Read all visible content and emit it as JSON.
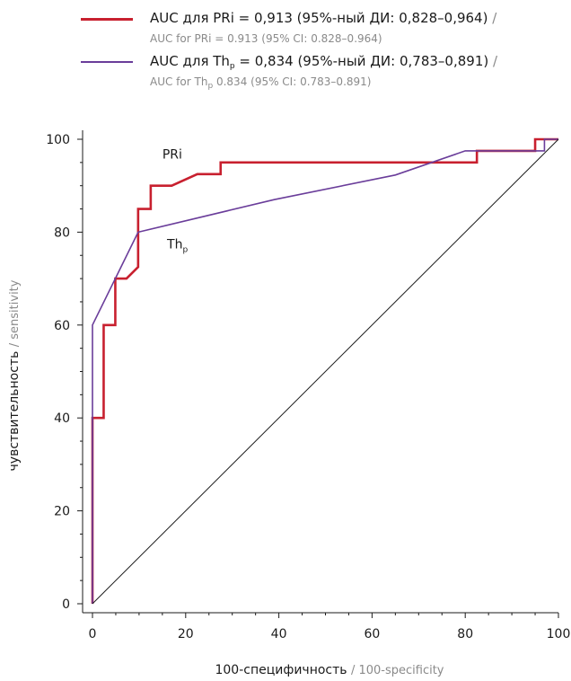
{
  "legend": [
    {
      "color": "#c8202f",
      "main_prefix": "AUC для PRi = 0,913 (95%-ный ДИ: 0,828–0,964)",
      "main_sub": "",
      "main_suffix": "",
      "slash": " /",
      "en_prefix": "AUC for PRi = 0.913 (95% CI: 0.828–0.964)",
      "en_sub": "",
      "en_suffix": ""
    },
    {
      "color": "#6a3d9a",
      "main_prefix": "AUC для Th",
      "main_sub": "p",
      "main_suffix": " = 0,834 (95%-ный ДИ: 0,783–0,891)",
      "slash": " /",
      "en_prefix": "AUC for Th",
      "en_sub": "p",
      "en_suffix": " 0.834 (95% CI: 0.783–0.891)"
    }
  ],
  "chart_data": {
    "type": "line",
    "xlabel": "100-специфичность",
    "xlabel_en": "/ 100-specificity",
    "ylabel": "чувствительность",
    "ylabel_en": "/ sensitivity",
    "xlim": [
      0,
      100
    ],
    "ylim": [
      0,
      100
    ],
    "x_ticks": [
      0,
      20,
      40,
      60,
      80,
      100
    ],
    "y_ticks": [
      0,
      20,
      40,
      60,
      80,
      100
    ],
    "grid": false,
    "legend_position": "top",
    "series": [
      {
        "name": "PRi",
        "label_main": "PRi",
        "label_sub": "",
        "color": "#c8202f",
        "x": [
          0,
          0,
          2.4,
          2.4,
          4.9,
          4.9,
          7.3,
          9.8,
          9.8,
          12.5,
          12.5,
          17,
          22.5,
          27.5,
          27.5,
          82.5,
          82.5,
          95,
          95,
          100,
          100
        ],
        "y": [
          0,
          40,
          40,
          60,
          60,
          70,
          70,
          72.5,
          85,
          85,
          90,
          90,
          92.5,
          92.5,
          95,
          95,
          97.5,
          97.5,
          100,
          100,
          100
        ]
      },
      {
        "name": "Thp",
        "label_main": "Th",
        "label_sub": "p",
        "color": "#6a3d9a",
        "x": [
          0,
          0,
          4.9,
          9.8,
          39,
          65,
          80,
          97,
          97,
          100
        ],
        "y": [
          0,
          60,
          70,
          80,
          87,
          92.3,
          97.5,
          97.5,
          100,
          100
        ]
      },
      {
        "name": "reference",
        "label_main": "",
        "label_sub": "",
        "color": "#1a1a1a",
        "x": [
          0,
          100
        ],
        "y": [
          0,
          100
        ]
      }
    ]
  }
}
